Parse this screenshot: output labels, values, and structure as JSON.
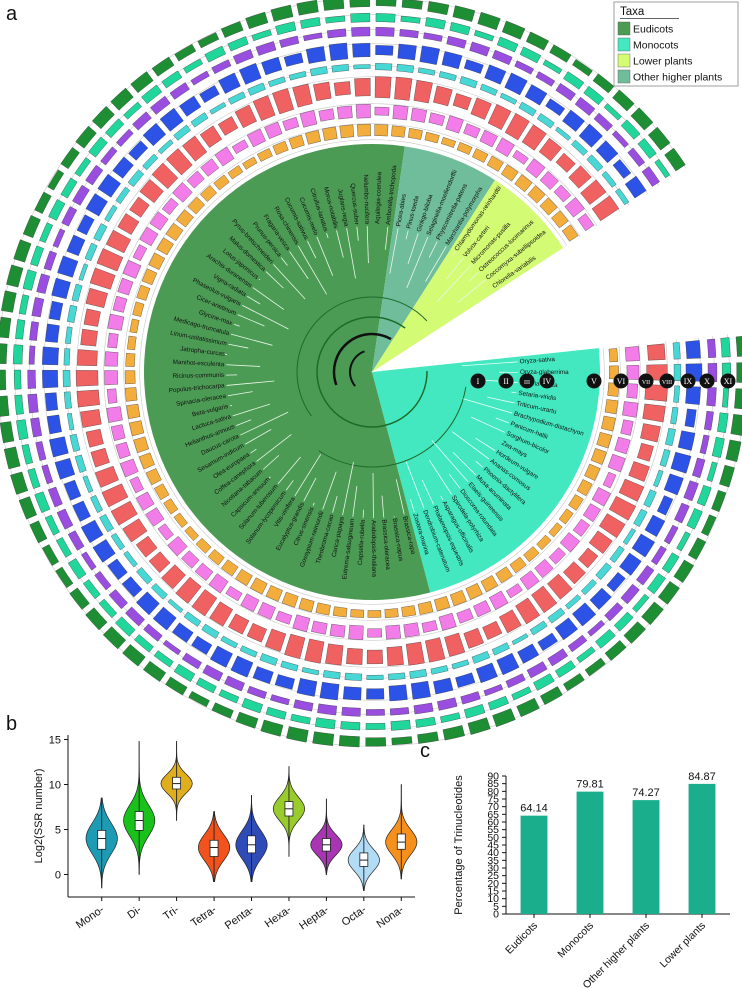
{
  "panel_labels": {
    "a": "a",
    "b": "b",
    "c": "c"
  },
  "legend": {
    "title": "Taxa",
    "items": [
      {
        "label": "Eudicots",
        "color": "#4c9b55"
      },
      {
        "label": "Monocots",
        "color": "#43e8c0"
      },
      {
        "label": "Lower plants",
        "color": "#d4fb74"
      },
      {
        "label": "Other higher plants",
        "color": "#6fbd9a"
      }
    ]
  },
  "ring_labels": [
    "I",
    "II",
    "III",
    "IV",
    "V",
    "VI",
    "VII",
    "VIII",
    "IX",
    "X",
    "XI"
  ],
  "tree": {
    "group_codes": {
      "Eudicots": "Dic",
      "Monocots": "Mon",
      "Other higher plants": "Pin",
      "Lower plants": "Chl"
    },
    "ring_colors": [
      "#f2ad3c",
      "#f37de8",
      "#f06161",
      "#47d8d6",
      "#2c52e6",
      "#9a4ee0",
      "#21d69a",
      "#1e8e34"
    ],
    "monocot_species": [
      "Oryza-sativa",
      "Oryza-glaberrima",
      "Setaria-italica",
      "Setaria-viridis",
      "Triticum-urartu",
      "Brachypodium-distachyon",
      "Panicum-hallii",
      "Sorghum-bicolor",
      "Zea-mays",
      "Hordeum-vulgare",
      "Ananas-comosus",
      "Phoenix-dactylifera",
      "Musa-acuminata",
      "Elaeis-guineensis",
      "Dioscorea-rotundata",
      "Spirodela-polyrhiza",
      "Asparagus-officinalis",
      "Phalaenopsis-equestris",
      "Dendrobium-catenatum",
      "Zostera-marina"
    ],
    "eudicot_species": [
      "Brassica-rapa",
      "Brassica-napus",
      "Brassica-oleracea",
      "Arabidopsis-thaliana",
      "Capsella-rubella",
      "Eutrema-salsugineum",
      "Carica-papaya",
      "Theobroma-cacao",
      "Gossypium-raimondii",
      "Citrus-sinensis",
      "Eucalyptus-grandis",
      "Vitis-vinifera",
      "Solanum-lycopersicum",
      "Solanum-tuberosum",
      "Capsicum-annuum",
      "Nicotiana-tabacum",
      "Coffea-canephora",
      "Olea-europaea",
      "Sesamum-indicum",
      "Daucus-carota",
      "Helianthus-annuus",
      "Lactuca-sativa",
      "Beta-vulgaris",
      "Spinacia-oleracea",
      "Populus-trichocarpa",
      "Ricinus-communis",
      "Manihot-esculenta",
      "Jatropha-curcas",
      "Linum-usitatissimum",
      "Medicago-truncatula",
      "Glycine-max",
      "Cicer-arietinum",
      "Phaseolus-vulgaris",
      "Vigna-radiata",
      "Arachis-duranensis",
      "Lotus-japonicus",
      "Malus-domestica",
      "Pyrus-bretschneideri",
      "Prunus-persica",
      "Fragaria-vesca",
      "Rosa-chinensis",
      "Cucumis-sativus",
      "Cucumis-melo",
      "Citrullus-lanatus",
      "Morus-notabilis",
      "Juglans-regia",
      "Quercus-suber",
      "Nelumbo-nucifera",
      "Aquilegia-coerulea",
      "Amborella-trichopoda"
    ],
    "other_species": [
      "Picea-abies",
      "Pinus-taeda",
      "Ginkgo-biloba",
      "Selaginella-moellendorffii",
      "Physcomitrella-patens",
      "Marchantia-polymorpha"
    ],
    "lower_species": [
      "Chlamydomonas-reinhardtii",
      "Volvox-carteri",
      "Micromonas-pusilla",
      "Ostreococcus-lucimarinus",
      "Coccomyxa-subellipsoidea",
      "Chlorella-variabilis"
    ],
    "other_codes": [
      "Pin",
      "Pin",
      "Gin",
      "Sel",
      "Bry",
      "Mar"
    ],
    "lower_codes": [
      "Chl",
      "Chl",
      "Chl",
      "Chl",
      "Chl",
      "Tre"
    ]
  },
  "violin": {
    "ylabel": "Log2(SSR number)",
    "yticks": [
      0,
      5,
      10,
      15
    ],
    "ylim": [
      -2.5,
      15.5
    ],
    "categories": [
      "Mono-",
      "Di-",
      "Tri-",
      "Tetra-",
      "Penta-",
      "Hexa-",
      "Hepta-",
      "Octa-",
      "Nona-"
    ],
    "colors": [
      "#1d9bb5",
      "#18c21a",
      "#e0ad1c",
      "#f2531c",
      "#2f4bb8",
      "#9acb2c",
      "#a934b4",
      "#b2dbf5",
      "#f5901c"
    ],
    "stats": [
      {
        "min": -1.5,
        "q1": 2.8,
        "median": 4.0,
        "q3": 4.9,
        "max": 8.5
      },
      {
        "min": 0.0,
        "q1": 4.9,
        "median": 6.0,
        "q3": 7.0,
        "max": 14.8
      },
      {
        "min": 6.0,
        "q1": 9.5,
        "median": 10.1,
        "q3": 10.8,
        "max": 14.8
      },
      {
        "min": -0.8,
        "q1": 2.0,
        "median": 3.0,
        "q3": 3.8,
        "max": 7.0
      },
      {
        "min": -0.8,
        "q1": 2.4,
        "median": 3.3,
        "q3": 4.3,
        "max": 8.8
      },
      {
        "min": 2.0,
        "q1": 6.5,
        "median": 7.3,
        "q3": 8.1,
        "max": 12.0
      },
      {
        "min": 0.0,
        "q1": 2.6,
        "median": 3.3,
        "q3": 4.0,
        "max": 8.4
      },
      {
        "min": -1.8,
        "q1": 0.9,
        "median": 1.6,
        "q3": 2.4,
        "max": 5.5
      },
      {
        "min": -0.5,
        "q1": 2.8,
        "median": 3.6,
        "q3": 4.5,
        "max": 10.0
      }
    ]
  },
  "chart_data": {
    "type": "bar",
    "categories": [
      "Eudicots",
      "Monocots",
      "Other higher plants",
      "Lower plants"
    ],
    "values": [
      64.14,
      79.81,
      74.27,
      84.87
    ],
    "value_labels": [
      "64.14",
      "79.81",
      "74.27",
      "84.87"
    ],
    "ylabel": "Percentage of Trinucleotides",
    "ylim": [
      0,
      90
    ],
    "yticks": [
      0,
      5,
      10,
      15,
      20,
      25,
      30,
      35,
      40,
      45,
      50,
      55,
      60,
      65,
      70,
      75,
      80,
      85,
      90
    ],
    "bar_color": "#1aae8c"
  }
}
